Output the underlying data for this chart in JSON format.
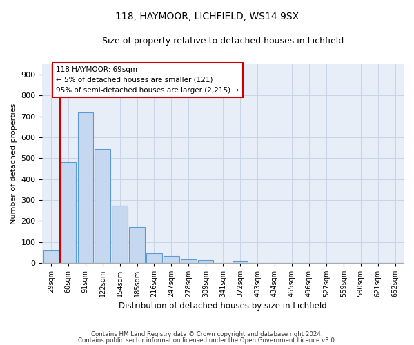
{
  "title1": "118, HAYMOOR, LICHFIELD, WS14 9SX",
  "title2": "Size of property relative to detached houses in Lichfield",
  "xlabel": "Distribution of detached houses by size in Lichfield",
  "ylabel": "Number of detached properties",
  "categories": [
    "29sqm",
    "60sqm",
    "91sqm",
    "122sqm",
    "154sqm",
    "185sqm",
    "216sqm",
    "247sqm",
    "278sqm",
    "309sqm",
    "341sqm",
    "372sqm",
    "403sqm",
    "434sqm",
    "465sqm",
    "496sqm",
    "527sqm",
    "559sqm",
    "590sqm",
    "621sqm",
    "652sqm"
  ],
  "values": [
    60,
    480,
    720,
    543,
    272,
    172,
    46,
    32,
    16,
    14,
    0,
    8,
    0,
    0,
    0,
    0,
    0,
    0,
    0,
    0,
    0
  ],
  "bar_color": "#c5d8f0",
  "bar_edgecolor": "#5b9bd5",
  "marker_line_color": "#cc0000",
  "annotation_text_line1": "118 HAYMOOR: 69sqm",
  "annotation_text_line2": "← 5% of detached houses are smaller (121)",
  "annotation_text_line3": "95% of semi-detached houses are larger (2,215) →",
  "annotation_box_color": "#ffffff",
  "annotation_box_edgecolor": "#cc0000",
  "ylim": [
    0,
    950
  ],
  "yticks": [
    0,
    100,
    200,
    300,
    400,
    500,
    600,
    700,
    800,
    900
  ],
  "grid_color": "#c8d4e8",
  "background_color": "#e8eef8",
  "footnote1": "Contains HM Land Registry data © Crown copyright and database right 2024.",
  "footnote2": "Contains public sector information licensed under the Open Government Licence v3.0."
}
